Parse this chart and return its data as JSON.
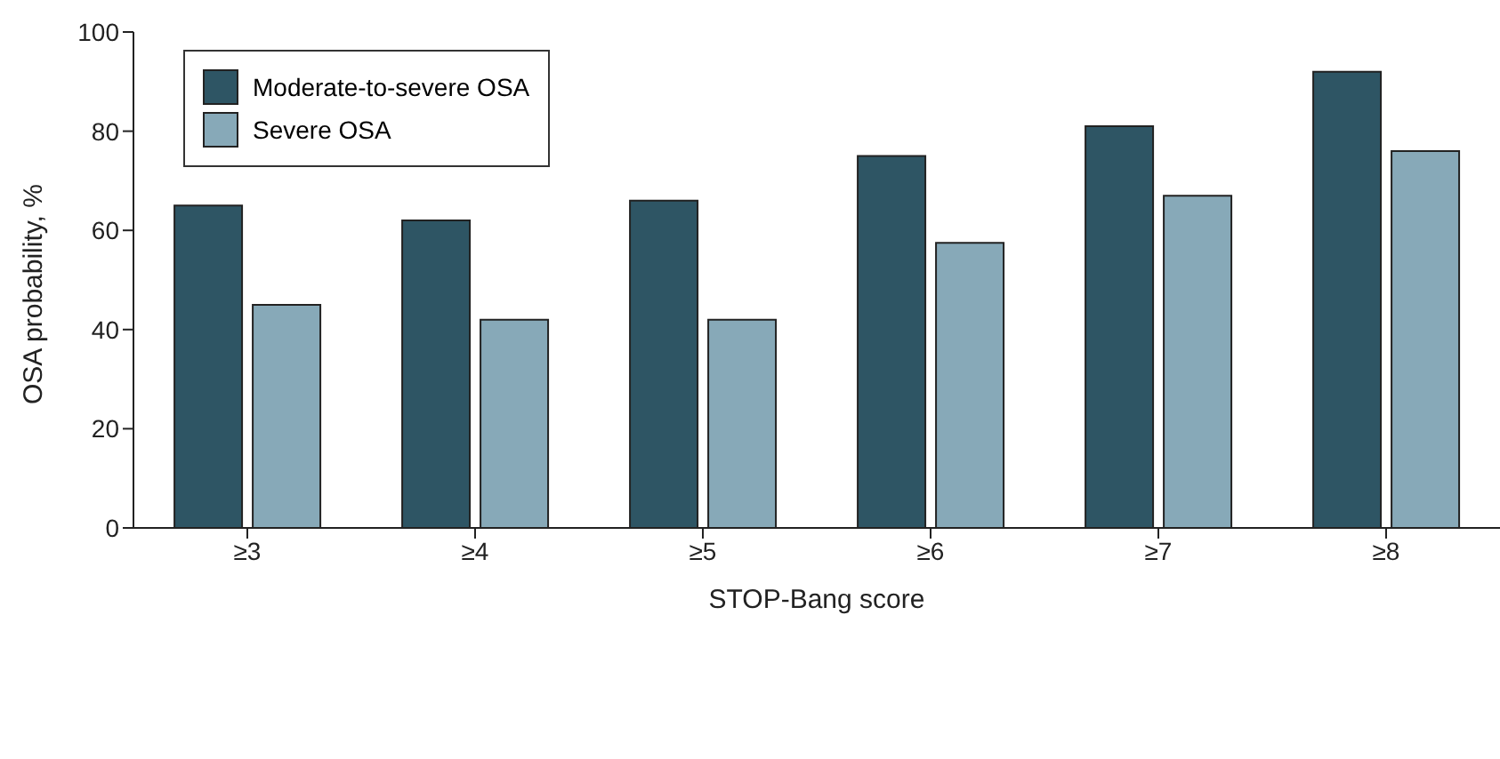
{
  "chart_data": {
    "type": "bar",
    "xlabel": "STOP-Bang score",
    "ylabel": "OSA probability, %",
    "categories": [
      "≥3",
      "≥4",
      "≥5",
      "≥6",
      "≥7",
      "≥8"
    ],
    "series": [
      {
        "name": "Moderate-to-severe OSA",
        "color": "#2e5564",
        "values": [
          65,
          62,
          66,
          75,
          81,
          92
        ]
      },
      {
        "name": "Severe OSA",
        "color": "#87a9b8",
        "values": [
          45,
          42,
          42,
          57.5,
          67,
          76
        ]
      }
    ],
    "ylim": [
      0,
      100
    ],
    "yticks": [
      0,
      20,
      40,
      60,
      80,
      100
    ],
    "grid": false,
    "legend": "top left"
  }
}
